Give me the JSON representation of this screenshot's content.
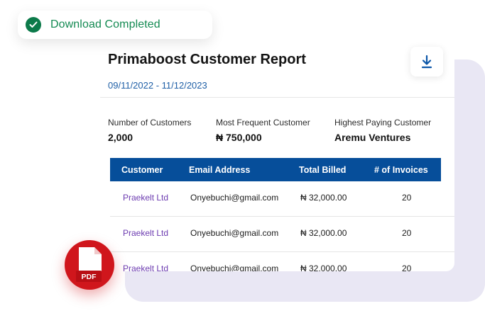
{
  "toast": {
    "message": "Download Completed"
  },
  "report": {
    "title": "Primaboost Customer Report",
    "date_range": "09/11/2022 - 11/12/2023",
    "stats": [
      {
        "label": "Number of Customers",
        "value": "2,000"
      },
      {
        "label": "Most Frequent Customer",
        "value": "₦ 750,000"
      },
      {
        "label": "Highest Paying Customer",
        "value": "Aremu Ventures"
      }
    ],
    "table": {
      "headers": [
        "Customer",
        "Email Address",
        "Total Billed",
        "# of Invoices"
      ],
      "rows": [
        [
          "Praekelt Ltd",
          "Onyebuchi@gmail.com",
          "₦ 32,000.00",
          "20"
        ],
        [
          "Praekelt Ltd",
          "Onyebuchi@gmail.com",
          "₦ 32,000.00",
          "20"
        ],
        [
          "Praekelt Ltd",
          "Onyebuchi@gmail.com",
          "₦ 32,000.00",
          "20"
        ]
      ]
    }
  },
  "pdf_badge": {
    "label": "PDF"
  },
  "icons": {
    "toast": "check-circle-icon",
    "download": "download-icon",
    "pdf": "pdf-file-icon"
  },
  "colors": {
    "accent_green": "#138a52",
    "table_header": "#064e9a",
    "date_blue": "#1f5fa6",
    "customer_purple": "#6c3bb0",
    "pdf_red": "#d0161c"
  }
}
